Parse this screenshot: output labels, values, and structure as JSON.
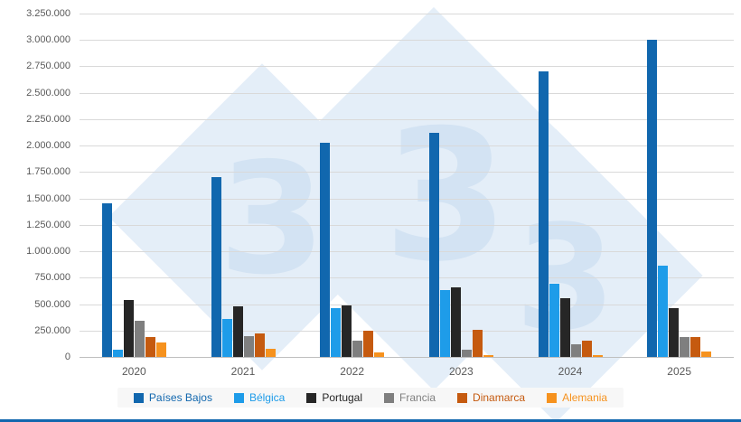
{
  "chart_data": {
    "type": "bar",
    "title": "",
    "xlabel": "",
    "ylabel": "",
    "categories": [
      "2020",
      "2021",
      "2022",
      "2023",
      "2024",
      "2025"
    ],
    "series": [
      {
        "name": "Países Bajos",
        "color": "#1167ae",
        "values": [
          1450000,
          1700000,
          2030000,
          2120000,
          2700000,
          3000000
        ]
      },
      {
        "name": "Bélgica",
        "color": "#1e9ce9",
        "values": [
          70000,
          360000,
          460000,
          630000,
          690000,
          860000
        ]
      },
      {
        "name": "Portugal",
        "color": "#262626",
        "values": [
          540000,
          480000,
          490000,
          660000,
          560000,
          460000
        ]
      },
      {
        "name": "Francia",
        "color": "#7f7f7f",
        "values": [
          340000,
          200000,
          150000,
          70000,
          120000,
          190000
        ]
      },
      {
        "name": "Dinamarca",
        "color": "#c55a0f",
        "values": [
          190000,
          220000,
          250000,
          260000,
          150000,
          190000
        ]
      },
      {
        "name": "Alemania",
        "color": "#f6921e",
        "values": [
          140000,
          80000,
          40000,
          20000,
          20000,
          50000
        ]
      }
    ],
    "ylim": [
      0,
      3250000
    ],
    "ytick_step": 250000,
    "ytick_labels": [
      "0",
      "250.000",
      "500.000",
      "750.000",
      "1.000.000",
      "1.250.000",
      "1.500.000",
      "1.750.000",
      "2.000.000",
      "2.250.000",
      "2.500.000",
      "2.750.000",
      "3.000.000",
      "3.250.000"
    ],
    "grid": true,
    "legend_position": "bottom"
  },
  "watermark": {
    "digits": [
      "3",
      "3",
      "3"
    ]
  },
  "colors": {
    "grid": "#d9d9d9",
    "baseline": "#bfbfbf",
    "axis_text": "#595959",
    "bottom_border": "#1167ae",
    "watermark_diamond": "#e4eef8",
    "watermark_digit": "#d3e3f3",
    "legend_background": "#f7f7f7"
  }
}
